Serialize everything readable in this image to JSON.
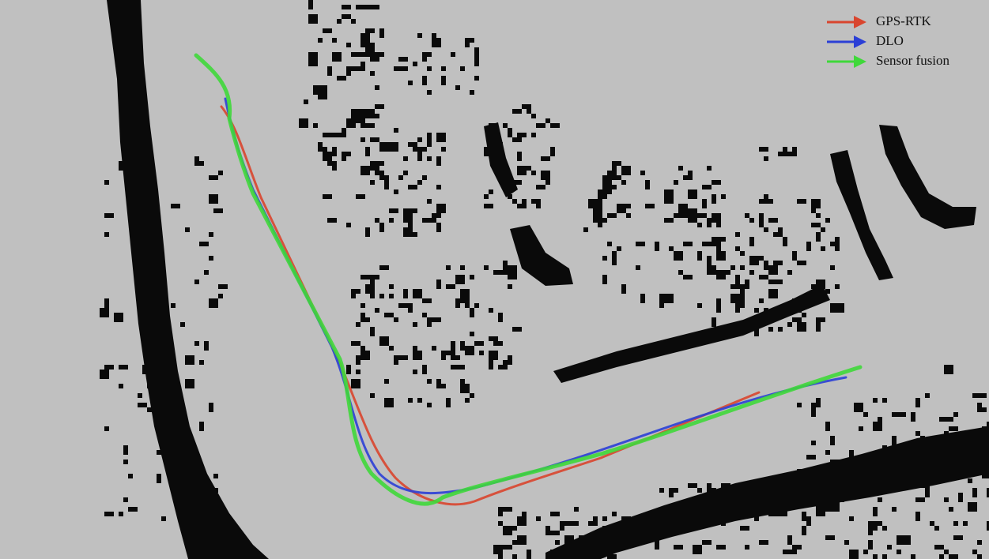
{
  "legend": {
    "items": [
      {
        "label": "GPS-RTK",
        "color": "#d9452e"
      },
      {
        "label": "DLO",
        "color": "#2b3fd6"
      },
      {
        "label": "Sensor fusion",
        "color": "#3fd83a"
      }
    ]
  }
}
